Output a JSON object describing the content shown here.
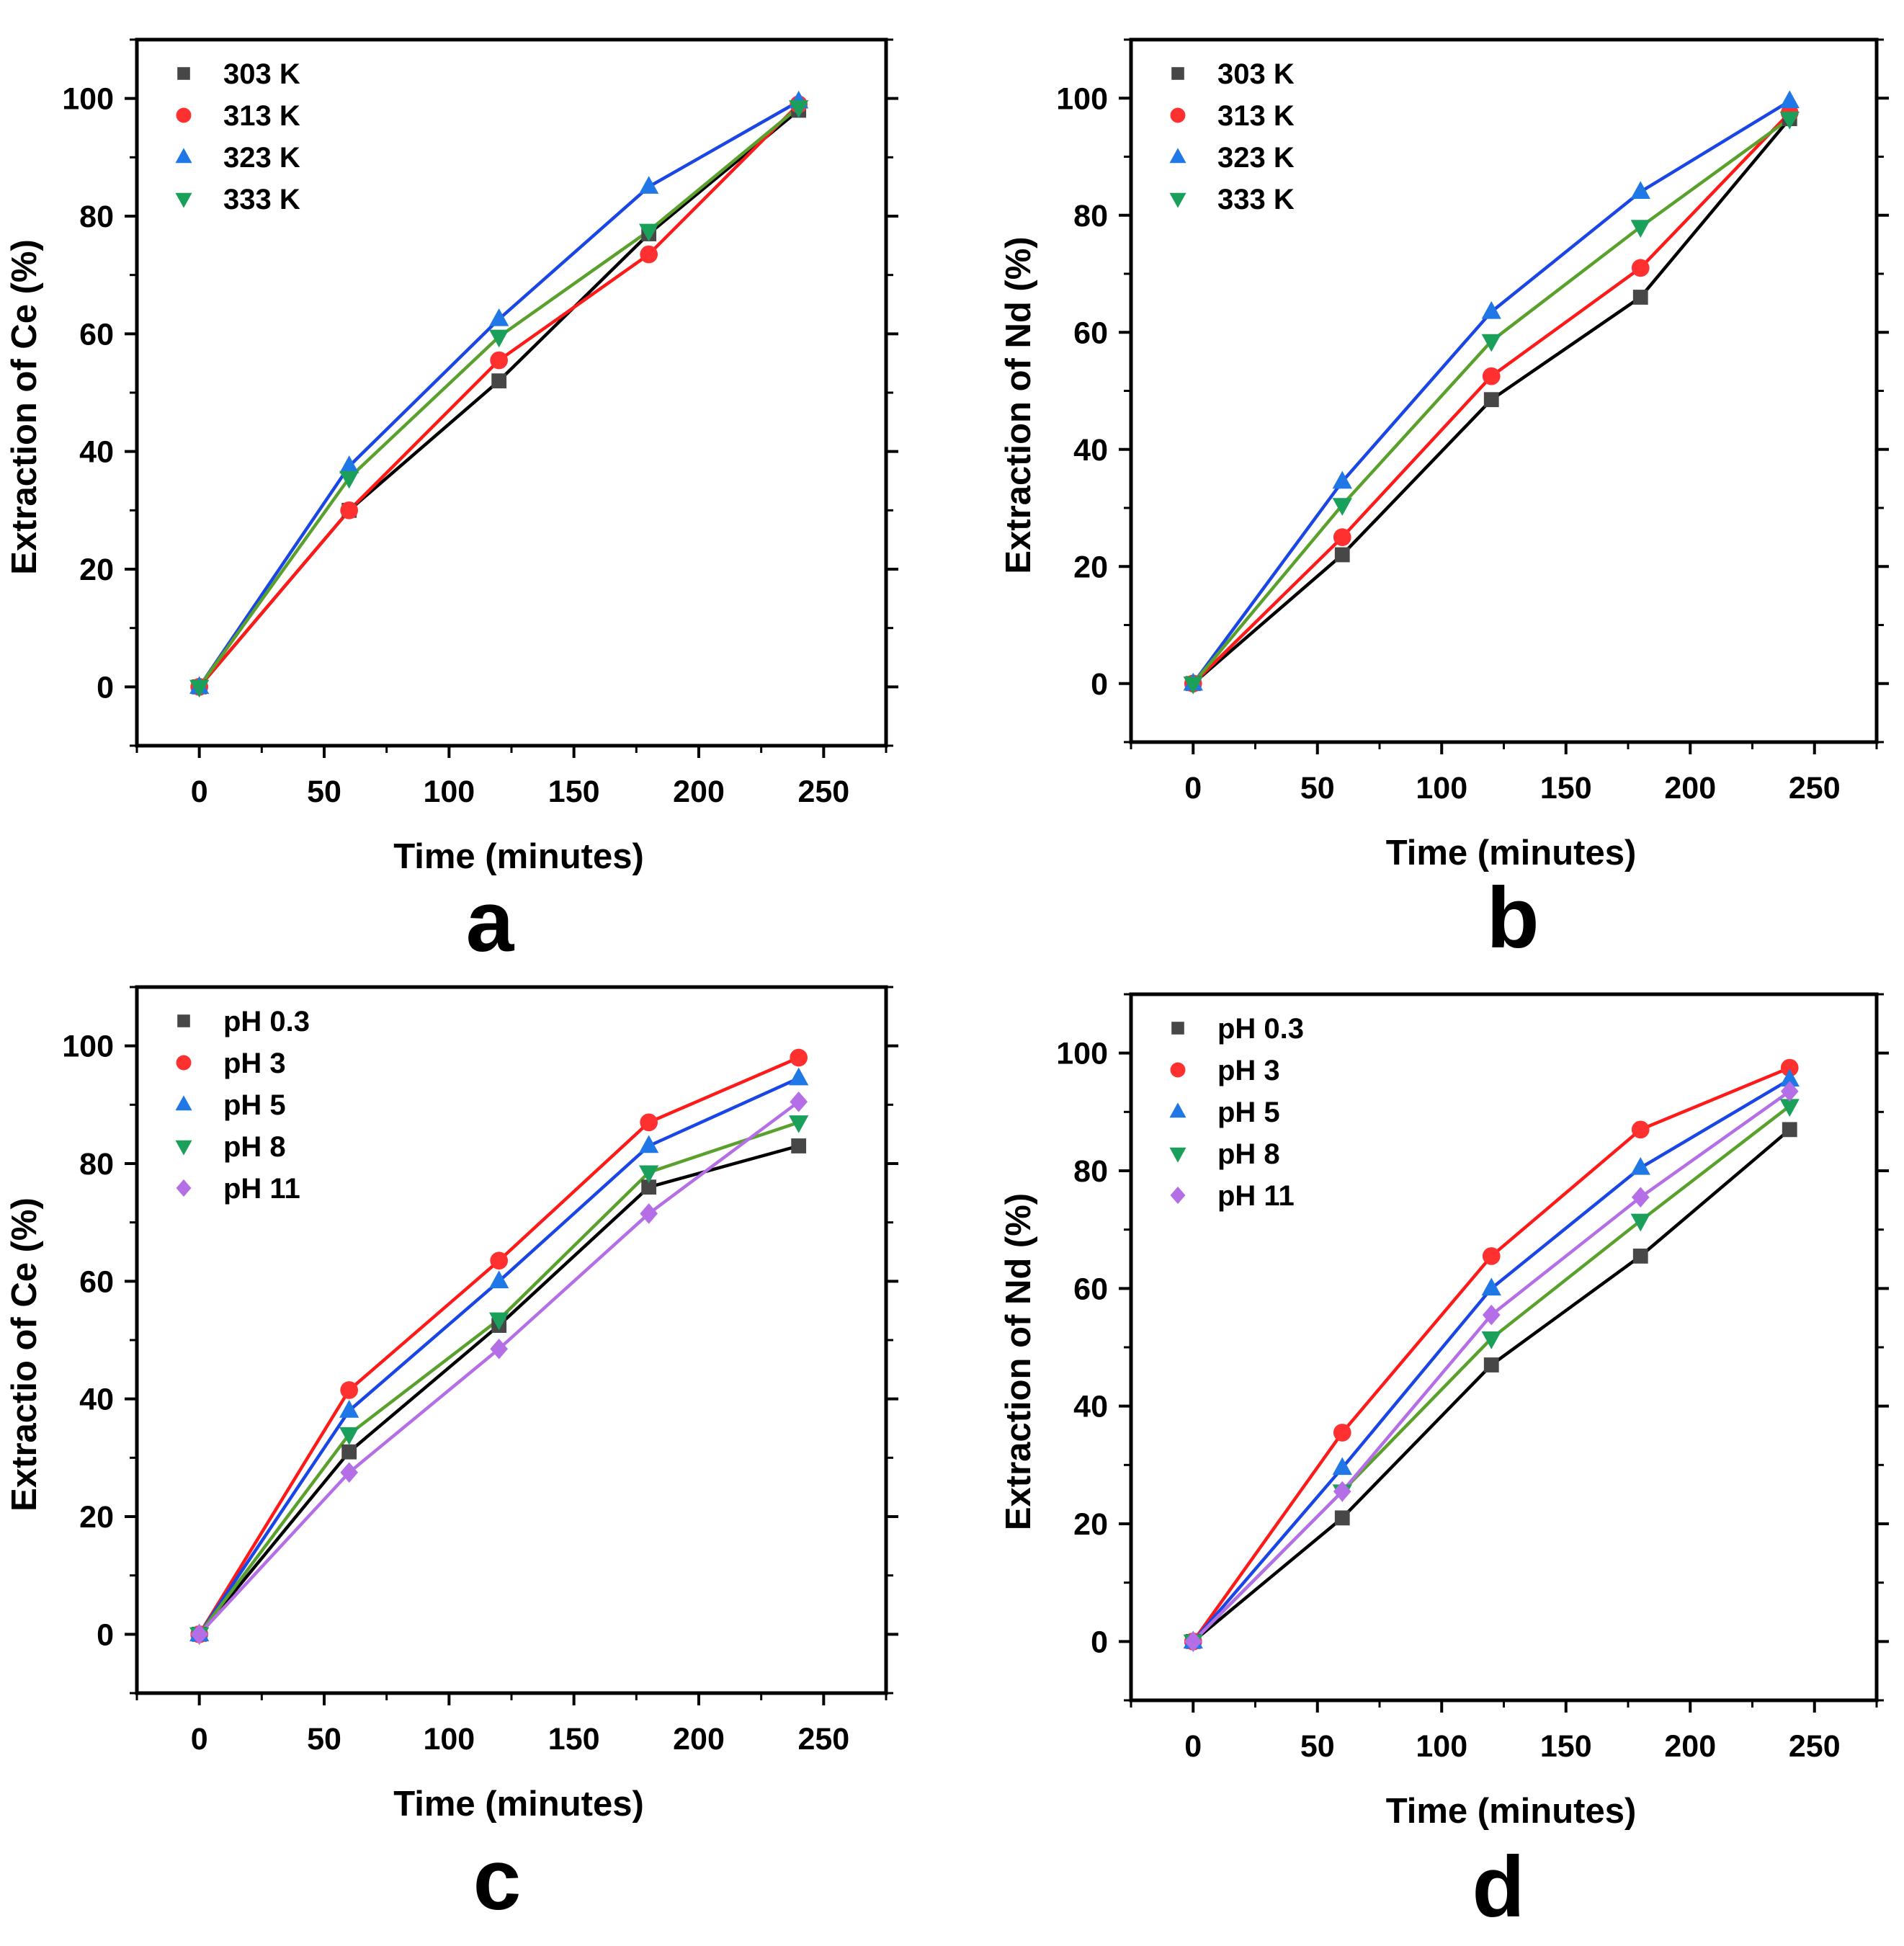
{
  "chart_data": [
    {
      "type": "line",
      "panel_label": "a",
      "xlabel": "Time (minutes)",
      "ylabel": "Extraction of Ce (%)",
      "xlim": [
        -25,
        275
      ],
      "ylim": [
        -10,
        110
      ],
      "xticks": [
        "0",
        "50",
        "100",
        "150",
        "200",
        "250"
      ],
      "yticks": [
        "0",
        "20",
        "40",
        "60",
        "80",
        "100"
      ],
      "legend_position": "top-left",
      "x": [
        0,
        60,
        120,
        180,
        240
      ],
      "series": [
        {
          "name": "303 K",
          "marker": "square",
          "color": "#000000",
          "marker_color": "#474747",
          "values": [
            0,
            30,
            52,
            77,
            98
          ]
        },
        {
          "name": "313 K",
          "marker": "circle",
          "color": "#ff1a1a",
          "marker_color": "#ff3030",
          "values": [
            0,
            30,
            55.5,
            73.5,
            99
          ]
        },
        {
          "name": "323 K",
          "marker": "triangle-up",
          "color": "#1a46e6",
          "marker_color": "#1f78e6",
          "values": [
            0,
            37.5,
            62.5,
            85,
            99.5
          ]
        },
        {
          "name": "333 K",
          "marker": "triangle-down",
          "color": "#5aa02c",
          "marker_color": "#1aa05a",
          "values": [
            0,
            35.5,
            59.5,
            77.5,
            98.5
          ]
        }
      ]
    },
    {
      "type": "line",
      "panel_label": "b",
      "xlabel": "Time (minutes)",
      "ylabel": "Extraction of Nd (%)",
      "xlim": [
        -25,
        275
      ],
      "ylim": [
        -10,
        110
      ],
      "xticks": [
        "0",
        "50",
        "100",
        "150",
        "200",
        "250"
      ],
      "yticks": [
        "0",
        "20",
        "40",
        "60",
        "80",
        "100"
      ],
      "legend_position": "top-left",
      "x": [
        0,
        60,
        120,
        180,
        240
      ],
      "series": [
        {
          "name": "303 K",
          "marker": "square",
          "color": "#000000",
          "marker_color": "#474747",
          "values": [
            0,
            22,
            48.5,
            66,
            96.5
          ]
        },
        {
          "name": "313 K",
          "marker": "circle",
          "color": "#ff1a1a",
          "marker_color": "#ff3030",
          "values": [
            0,
            25,
            52.5,
            71,
            97.5
          ]
        },
        {
          "name": "323 K",
          "marker": "triangle-up",
          "color": "#1a46e6",
          "marker_color": "#1f78e6",
          "values": [
            0,
            34.5,
            63.5,
            84,
            99.5
          ]
        },
        {
          "name": "333 K",
          "marker": "triangle-down",
          "color": "#5aa02c",
          "marker_color": "#1aa05a",
          "values": [
            0,
            30.5,
            58.5,
            78,
            96.5
          ]
        }
      ]
    },
    {
      "type": "line",
      "panel_label": "c",
      "xlabel": "Time (minutes)",
      "ylabel": "Extractio of Ce (%)",
      "xlim": [
        -25,
        275
      ],
      "ylim": [
        -10,
        110
      ],
      "xticks": [
        "0",
        "50",
        "100",
        "150",
        "200",
        "250"
      ],
      "yticks": [
        "0",
        "20",
        "40",
        "60",
        "80",
        "100"
      ],
      "legend_position": "top-left",
      "x": [
        0,
        60,
        120,
        180,
        240
      ],
      "series": [
        {
          "name": "pH 0.3",
          "marker": "square",
          "color": "#000000",
          "marker_color": "#474747",
          "values": [
            0,
            31,
            52.5,
            76,
            83
          ]
        },
        {
          "name": "pH 3",
          "marker": "circle",
          "color": "#ff1a1a",
          "marker_color": "#ff3030",
          "values": [
            0,
            41.5,
            63.5,
            87,
            98
          ]
        },
        {
          "name": "pH 5",
          "marker": "triangle-up",
          "color": "#1a46e6",
          "marker_color": "#1f78e6",
          "values": [
            0,
            38,
            60,
            83,
            94.5
          ]
        },
        {
          "name": "pH 8",
          "marker": "triangle-down",
          "color": "#5aa02c",
          "marker_color": "#1aa05a",
          "values": [
            0,
            34,
            53.5,
            78.5,
            87
          ]
        },
        {
          "name": "pH 11",
          "marker": "diamond",
          "color": "#b46ee6",
          "marker_color": "#b46ee6",
          "values": [
            0,
            27.5,
            48.5,
            71.5,
            90.5
          ]
        }
      ]
    },
    {
      "type": "line",
      "panel_label": "d",
      "xlabel": "Time (minutes)",
      "ylabel": "Extraction of Nd (%)",
      "xlim": [
        -25,
        275
      ],
      "ylim": [
        -10,
        110
      ],
      "xticks": [
        "0",
        "50",
        "100",
        "150",
        "200",
        "250"
      ],
      "yticks": [
        "0",
        "20",
        "40",
        "60",
        "80",
        "100"
      ],
      "legend_position": "top-left",
      "x": [
        0,
        60,
        120,
        180,
        240
      ],
      "series": [
        {
          "name": "pH 0.3",
          "marker": "square",
          "color": "#000000",
          "marker_color": "#474747",
          "values": [
            0,
            21,
            47,
            65.5,
            87
          ]
        },
        {
          "name": "pH 3",
          "marker": "circle",
          "color": "#ff1a1a",
          "marker_color": "#ff3030",
          "values": [
            0,
            35.5,
            65.5,
            87,
            97.5
          ]
        },
        {
          "name": "pH 5",
          "marker": "triangle-up",
          "color": "#1a46e6",
          "marker_color": "#1f78e6",
          "values": [
            0,
            29.5,
            60,
            80.5,
            95.5
          ]
        },
        {
          "name": "pH 8",
          "marker": "triangle-down",
          "color": "#5aa02c",
          "marker_color": "#1aa05a",
          "values": [
            0,
            25.5,
            51.5,
            71.5,
            91
          ]
        },
        {
          "name": "pH 11",
          "marker": "diamond",
          "color": "#b46ee6",
          "marker_color": "#b46ee6",
          "values": [
            0,
            25.5,
            55.5,
            75.5,
            93.5
          ]
        }
      ]
    }
  ]
}
